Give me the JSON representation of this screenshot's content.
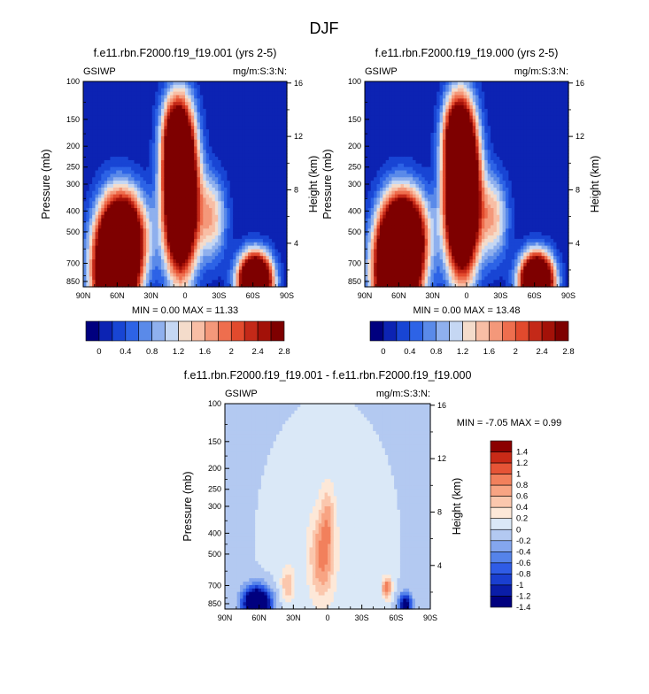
{
  "figure_title": "DJF",
  "chart_data": [
    {
      "type": "heatmap",
      "id": "left",
      "title": "f.e11.rbn.F2000.f19_f19.001 (yrs 2-5)",
      "left_label": "GSIWP",
      "right_label": "mg/m:S:3:N:",
      "ylabel": "Pressure (mb)",
      "y2label": "Height (km)",
      "x_ticks": [
        "90N",
        "60N",
        "30N",
        "0",
        "30S",
        "60S",
        "90S"
      ],
      "y_ticks": [
        "100",
        "150",
        "200",
        "250",
        "300",
        "400",
        "500",
        "700",
        "850"
      ],
      "y2_ticks": [
        "16",
        "12",
        "8",
        "4"
      ],
      "stats": "MIN =  0.00  MAX = 11.33",
      "min": 0.0,
      "max": 11.33,
      "colorbar_labels": [
        "0",
        "0.4",
        "0.8",
        "1.2",
        "1.6",
        "2",
        "2.4",
        "2.8"
      ],
      "blobs": [
        {
          "lat": 62,
          "p": 775,
          "slat": 13,
          "sp": 0.45,
          "amp": 6.0
        },
        {
          "lat": 52,
          "p": 520,
          "slat": 13,
          "sp": 0.32,
          "amp": 3.0
        },
        {
          "lat": 4,
          "p": 340,
          "slat": 10,
          "sp": 0.55,
          "amp": 6.5
        },
        {
          "lat": 8,
          "p": 175,
          "slat": 9,
          "sp": 0.3,
          "amp": 2.0
        },
        {
          "lat": -24,
          "p": 430,
          "slat": 9,
          "sp": 0.32,
          "amp": 1.5
        },
        {
          "lat": -62,
          "p": 850,
          "slat": 10,
          "sp": 0.2,
          "amp": 6.0
        }
      ]
    },
    {
      "type": "heatmap",
      "id": "right",
      "title": "f.e11.rbn.F2000.f19_f19.000 (yrs 2-5)",
      "left_label": "GSIWP",
      "right_label": "mg/m:S:3:N:",
      "ylabel": "Pressure (mb)",
      "y2label": "Height (km)",
      "x_ticks": [
        "90N",
        "60N",
        "30N",
        "0",
        "30S",
        "60S",
        "90S"
      ],
      "y_ticks": [
        "100",
        "150",
        "200",
        "250",
        "300",
        "400",
        "500",
        "700",
        "850"
      ],
      "y2_ticks": [
        "16",
        "12",
        "8",
        "4"
      ],
      "stats": "MIN =  0.00  MAX = 13.48",
      "min": 0.0,
      "max": 13.48,
      "colorbar_labels": [
        "0",
        "0.4",
        "0.8",
        "1.2",
        "1.6",
        "2",
        "2.4",
        "2.8"
      ],
      "blobs": [
        {
          "lat": 62,
          "p": 775,
          "slat": 13,
          "sp": 0.45,
          "amp": 6.5
        },
        {
          "lat": 52,
          "p": 520,
          "slat": 13,
          "sp": 0.32,
          "amp": 3.0
        },
        {
          "lat": 4,
          "p": 340,
          "slat": 10,
          "sp": 0.55,
          "amp": 7.0
        },
        {
          "lat": 8,
          "p": 175,
          "slat": 9,
          "sp": 0.3,
          "amp": 2.2
        },
        {
          "lat": -24,
          "p": 430,
          "slat": 9,
          "sp": 0.32,
          "amp": 1.5
        },
        {
          "lat": -62,
          "p": 850,
          "slat": 10,
          "sp": 0.2,
          "amp": 6.0
        }
      ]
    },
    {
      "type": "heatmap",
      "id": "diff",
      "title": "f.e11.rbn.F2000.f19_f19.001 - f.e11.rbn.F2000.f19_f19.000",
      "left_label": "GSIWP",
      "right_label": "mg/m:S:3:N:",
      "ylabel": "Pressure (mb)",
      "y2label": "Height (km)",
      "x_ticks": [
        "90N",
        "60N",
        "30N",
        "0",
        "30S",
        "60S",
        "90S"
      ],
      "y_ticks": [
        "100",
        "150",
        "200",
        "250",
        "300",
        "400",
        "500",
        "700",
        "850"
      ],
      "y2_ticks": [
        "16",
        "12",
        "8",
        "4"
      ],
      "stats": "MIN =  -7.05  MAX =   0.99",
      "min": -7.05,
      "max": 0.99,
      "colorbar_labels": [
        "1.4",
        "1.2",
        "1",
        "0.8",
        "0.6",
        "0.4",
        "0.2",
        "0",
        "-0.2",
        "-0.4",
        "-0.6",
        "-0.8",
        "-1",
        "-1.2",
        "-1.4"
      ],
      "baseline": -0.05,
      "blobs": [
        {
          "lat": 0,
          "p": 450,
          "slat": 40,
          "sp": 1.0,
          "amp": 0.18
        },
        {
          "lat": 5,
          "p": 520,
          "slat": 7,
          "sp": 0.3,
          "amp": 0.75
        },
        {
          "lat": 0,
          "p": 340,
          "slat": 4,
          "sp": 0.25,
          "amp": 0.45
        },
        {
          "lat": 35,
          "p": 690,
          "slat": 4,
          "sp": 0.12,
          "amp": 0.55
        },
        {
          "lat": -52,
          "p": 720,
          "slat": 3,
          "sp": 0.08,
          "amp": 1.0
        },
        {
          "lat": 62,
          "p": 850,
          "slat": 8,
          "sp": 0.12,
          "amp": -2.5
        },
        {
          "lat": -68,
          "p": 855,
          "slat": 4,
          "sp": 0.08,
          "amp": -1.5
        }
      ]
    }
  ],
  "colors": {
    "seq": [
      "#00007f",
      "#0c23b3",
      "#1845d4",
      "#2d63e6",
      "#5a8ae9",
      "#8fb0ee",
      "#c5d7f3",
      "#f4dccb",
      "#f8bea5",
      "#f4987a",
      "#ee6e4e",
      "#e24a2d",
      "#c42918",
      "#a31108",
      "#7e0000"
    ],
    "div": [
      "#00007f",
      "#0a1da8",
      "#1a3fd0",
      "#2f5ce6",
      "#5583ea",
      "#84a6ee",
      "#b3c9f1",
      "#dae8f7",
      "#fde8d8",
      "#fbc7ad",
      "#f8a483",
      "#f2805c",
      "#e65436",
      "#c92a17",
      "#8b0000"
    ]
  }
}
